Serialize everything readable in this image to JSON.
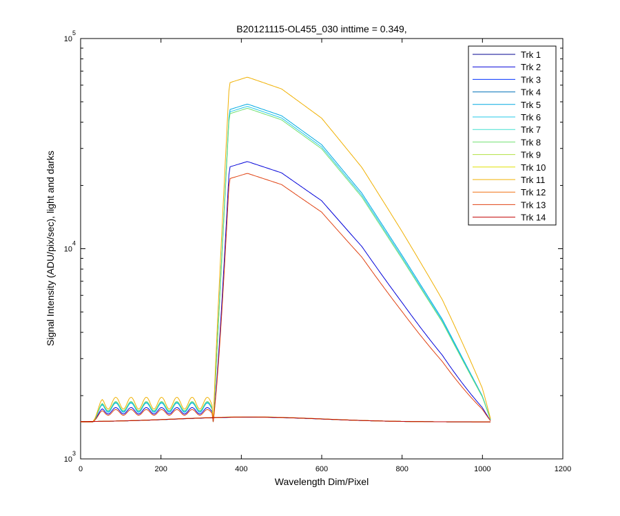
{
  "chart_data": {
    "type": "line",
    "title": "B20121115-OL455_030 inttime = 0.349,",
    "xlabel": "Wavelength Dim/Pixel",
    "ylabel": "Signal Intensity (ADU/pix/sec), light and darks",
    "xlim": [
      0,
      1200
    ],
    "ylim": [
      1000,
      100000
    ],
    "yscale": "log",
    "grid": false,
    "legend_position": "top-right",
    "x_ticks": [
      "0",
      "200",
      "400",
      "600",
      "800",
      "1000",
      "1200"
    ],
    "y_ticks": [
      {
        "base": "10",
        "exp": "3",
        "value": 1000
      },
      {
        "base": "10",
        "exp": "4",
        "value": 10000
      },
      {
        "base": "10",
        "exp": "5",
        "value": 100000
      }
    ],
    "series": [
      {
        "name": "Trk 1",
        "color": "#00008f",
        "light": false,
        "level": 1.0
      },
      {
        "name": "Trk 2",
        "color": "#0000d9",
        "light": true,
        "level": 0.505,
        "offset": 0.13,
        "swing": 0.04
      },
      {
        "name": "Trk 3",
        "color": "#0030ff",
        "light": false,
        "level": 1.01
      },
      {
        "name": "Trk 4",
        "color": "#0070b8",
        "light": false,
        "level": 1.02
      },
      {
        "name": "Trk 5",
        "color": "#00a8e0",
        "light": true,
        "level": 0.975,
        "offset": 0.17,
        "swing": 0.06
      },
      {
        "name": "Trk 6",
        "color": "#20c8e8",
        "light": true,
        "level": 0.95,
        "offset": 0.18,
        "swing": 0.06
      },
      {
        "name": "Trk 7",
        "color": "#40e0d0",
        "light": false,
        "level": 1.03
      },
      {
        "name": "Trk 8",
        "color": "#70e070",
        "light": true,
        "level": 0.93,
        "offset": 0.19,
        "swing": 0.06
      },
      {
        "name": "Trk 9",
        "color": "#b0e040",
        "light": false,
        "level": 1.04
      },
      {
        "name": "Trk 10",
        "color": "#e0e000",
        "light": false,
        "level": 1.05
      },
      {
        "name": "Trk 11",
        "color": "#f0b000",
        "light": true,
        "level": 1.32,
        "offset": 0.23,
        "swing": 0.08
      },
      {
        "name": "Trk 12",
        "color": "#f07010",
        "light": false,
        "level": 1.03
      },
      {
        "name": "Trk 13",
        "color": "#e04010",
        "light": true,
        "level": 0.44,
        "offset": 0.11,
        "swing": 0.035
      },
      {
        "name": "Trk 14",
        "color": "#c00000",
        "light": false,
        "level": 1.02
      }
    ],
    "light_profile": {
      "x": [
        0,
        330,
        370,
        415,
        500,
        600,
        700,
        800,
        900,
        1000,
        1022
      ],
      "y": [
        1500,
        1500,
        47000,
        50000,
        44000,
        32000,
        18800,
        9500,
        4700,
        2000,
        1500
      ]
    },
    "dark_profile": {
      "x": [
        0,
        1022
      ],
      "y": [
        1500,
        1500
      ],
      "bump_peak": 1580,
      "bump_center": 420,
      "bump_width": 250
    }
  }
}
